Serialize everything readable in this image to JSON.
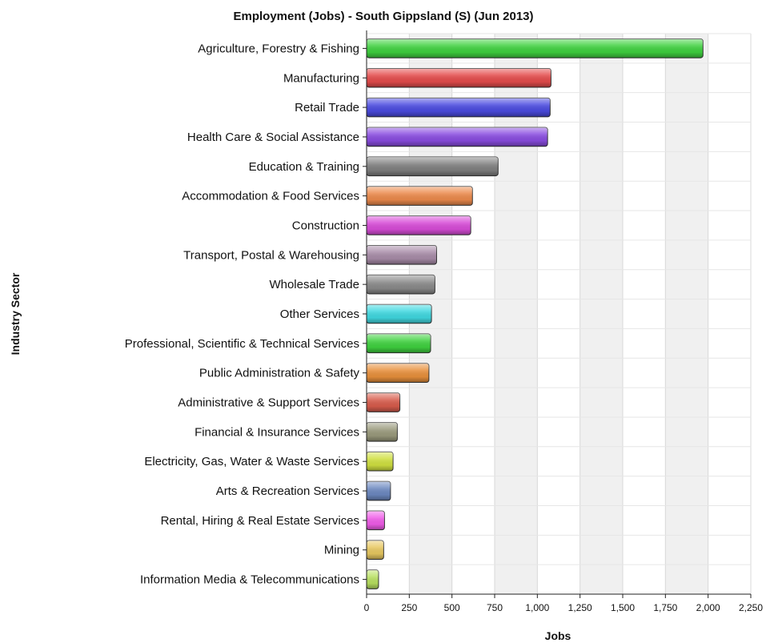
{
  "chart_data": {
    "type": "bar",
    "orientation": "horizontal",
    "title": "Employment (Jobs) - South Gippsland (S) (Jun 2013)",
    "xlabel": "Jobs",
    "ylabel": "Industry Sector",
    "xlim": [
      0,
      2250
    ],
    "xticks": [
      0,
      250,
      500,
      750,
      1000,
      1250,
      1500,
      1750,
      2000,
      2250
    ],
    "xtick_labels": [
      "0",
      "250",
      "500",
      "750",
      "1,000",
      "1,250",
      "1,500",
      "1,750",
      "2,000",
      "2,250"
    ],
    "grid": true,
    "legend": "none",
    "categories": [
      "Agriculture, Forestry & Fishing",
      "Manufacturing",
      "Retail Trade",
      "Health Care & Social Assistance",
      "Education & Training",
      "Accommodation & Food Services",
      "Construction",
      "Transport, Postal & Warehousing",
      "Wholesale Trade",
      "Other Services",
      "Professional, Scientific & Technical Services",
      "Public Administration & Safety",
      "Administrative & Support Services",
      "Financial & Insurance Services",
      "Electricity, Gas, Water & Waste Services",
      "Arts & Recreation Services",
      "Rental, Hiring & Real Estate Services",
      "Mining",
      "Information Media & Telecommunications"
    ],
    "values": [
      1970,
      1080,
      1075,
      1060,
      770,
      620,
      610,
      410,
      400,
      380,
      375,
      365,
      195,
      180,
      155,
      140,
      105,
      100,
      70
    ],
    "colors": [
      "#3fd13f",
      "#e44b4b",
      "#4b4be0",
      "#8a4ce0",
      "#808080",
      "#ec8a4c",
      "#d84cd8",
      "#a88ca8",
      "#8a8a8a",
      "#40d8e0",
      "#3fd13f",
      "#e8903c",
      "#d85c4c",
      "#9a9a7c",
      "#d0e040",
      "#6c88c0",
      "#f05ce8",
      "#e8c860",
      "#b8e060"
    ]
  }
}
